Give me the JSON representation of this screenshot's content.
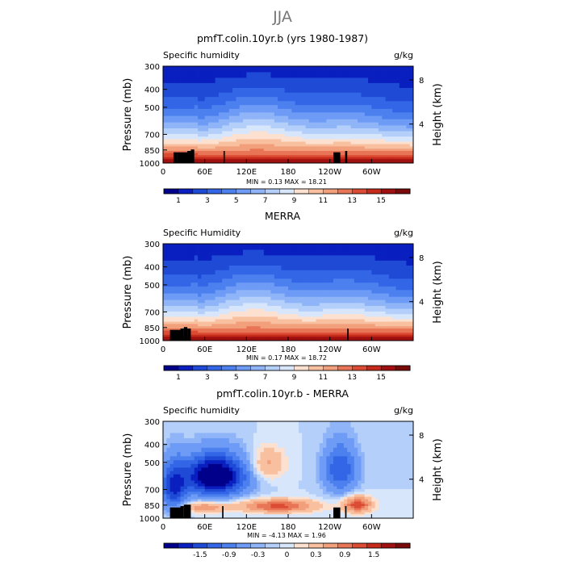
{
  "figure_title": "JJA",
  "colorbar_labels": {
    "abs": [
      "1",
      "3",
      "5",
      "7",
      "9",
      "11",
      "13",
      "15"
    ],
    "diff": [
      "-1.5",
      "-0.9",
      "-0.3",
      "0",
      "0.3",
      "0.9",
      "1.5"
    ]
  },
  "chart_data": [
    {
      "type": "heatmap",
      "title": "pmfT.colin.10yr.b (yrs 1980-1987)",
      "left_label": "Specific humidity",
      "units": "g/kg",
      "ylabel": "Pressure (mb)",
      "ylabel_right": "Height (km)",
      "y_ticks": [
        "300",
        "400",
        "500",
        "700",
        "850",
        "1000"
      ],
      "y_ticks_right": [
        "8",
        "4"
      ],
      "x_ticks": [
        "0",
        "60E",
        "120E",
        "180",
        "120W",
        "60W"
      ],
      "stats": "MIN =     0.13   MAX =    18.21",
      "colorbar_ticks": [
        1,
        3,
        5,
        7,
        9,
        11,
        13,
        15
      ],
      "colors": [
        "#00008b",
        "#0a1fc0",
        "#1f4ad6",
        "#3366e6",
        "#4d80ef",
        "#6d9bf5",
        "#8fb4f8",
        "#b4cffa",
        "#d8e6fc",
        "#fde1d0",
        "#f9c0a0",
        "#f29f7c",
        "#e87556",
        "#dc4b33",
        "#c52a1a",
        "#a01010",
        "#7a0a0a"
      ],
      "mode": "abs",
      "peaks": [
        {
          "lon": 135,
          "amp": 1.0
        },
        {
          "lon": 265,
          "amp": 0.5
        }
      ],
      "terrain": [
        [
          15,
          20,
          "h1"
        ],
        [
          20,
          40,
          "h1"
        ],
        [
          35,
          40,
          "h2"
        ],
        [
          40,
          45,
          "h3"
        ],
        [
          87,
          89,
          "h2"
        ],
        [
          245,
          255,
          "h1"
        ],
        [
          262,
          265,
          "h2"
        ]
      ]
    },
    {
      "type": "heatmap",
      "title": "MERRA",
      "left_label": "Specific Humidity",
      "units": "g/kg",
      "ylabel": "Pressure (mb)",
      "ylabel_right": "Height (km)",
      "y_ticks": [
        "300",
        "400",
        "500",
        "700",
        "850",
        "1000"
      ],
      "y_ticks_right": [
        "8",
        "4"
      ],
      "x_ticks": [
        "0",
        "60E",
        "120E",
        "180",
        "120W",
        "60W"
      ],
      "stats": "MIN =     0.17   MAX =    18.72",
      "colorbar_ticks": [
        1,
        3,
        5,
        7,
        9,
        11,
        13,
        15
      ],
      "colors": [
        "#00008b",
        "#0a1fc0",
        "#1f4ad6",
        "#3366e6",
        "#4d80ef",
        "#6d9bf5",
        "#8fb4f8",
        "#b4cffa",
        "#d8e6fc",
        "#fde1d0",
        "#f9c0a0",
        "#f29f7c",
        "#e87556",
        "#dc4b33",
        "#c52a1a",
        "#a01010",
        "#7a0a0a"
      ],
      "mode": "abs",
      "peaks": [
        {
          "lon": 130,
          "amp": 1.0
        },
        {
          "lon": 265,
          "amp": 0.6
        }
      ],
      "terrain": [
        [
          10,
          25,
          "h1"
        ],
        [
          25,
          30,
          "h2"
        ],
        [
          30,
          35,
          "h3"
        ],
        [
          35,
          40,
          "h2"
        ],
        [
          265,
          267,
          "h2"
        ]
      ]
    },
    {
      "type": "heatmap",
      "title": "pmfT.colin.10yr.b - MERRA",
      "left_label": "Specific humidity",
      "units": "g/kg",
      "ylabel": "Pressure (mb)",
      "ylabel_right": "Height (km)",
      "y_ticks": [
        "300",
        "400",
        "500",
        "700",
        "850",
        "1000"
      ],
      "y_ticks_right": [
        "8",
        "4"
      ],
      "x_ticks": [
        "0",
        "60E",
        "120E",
        "180",
        "120W",
        "60W"
      ],
      "stats": "MIN =    -4.13   MAX =     1.96",
      "colorbar_ticks": [
        -1.5,
        -0.9,
        -0.3,
        0,
        0.3,
        0.9,
        1.5
      ],
      "colors": [
        "#00008b",
        "#0a1fc0",
        "#1f4ad6",
        "#3366e6",
        "#4d80ef",
        "#6d9bf5",
        "#8fb4f8",
        "#b4cffa",
        "#d8e6fc",
        "#fde1d0",
        "#f9c0a0",
        "#f29f7c",
        "#e87556",
        "#dc4b33",
        "#c52a1a",
        "#a01010",
        "#7a0a0a"
      ],
      "mode": "diff",
      "terrain": [
        [
          10,
          25,
          "h1"
        ],
        [
          25,
          30,
          "h2"
        ],
        [
          30,
          40,
          "h3"
        ],
        [
          85,
          87,
          "h2"
        ],
        [
          245,
          255,
          "h1"
        ],
        [
          262,
          264,
          "h2"
        ]
      ]
    }
  ]
}
